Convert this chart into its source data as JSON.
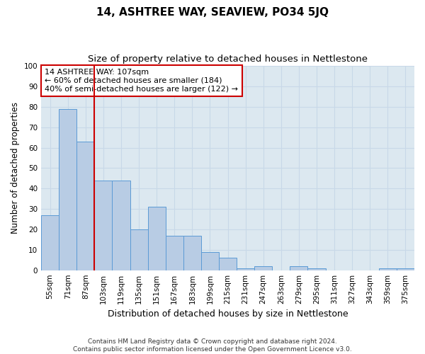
{
  "title": "14, ASHTREE WAY, SEAVIEW, PO34 5JQ",
  "subtitle": "Size of property relative to detached houses in Nettlestone",
  "xlabel": "Distribution of detached houses by size in Nettlestone",
  "ylabel": "Number of detached properties",
  "bar_values": [
    27,
    79,
    63,
    44,
    44,
    20,
    31,
    17,
    17,
    9,
    6,
    1,
    2,
    0,
    2,
    1,
    0,
    0,
    0,
    1,
    1
  ],
  "bin_labels": [
    "55sqm",
    "71sqm",
    "87sqm",
    "103sqm",
    "119sqm",
    "135sqm",
    "151sqm",
    "167sqm",
    "183sqm",
    "199sqm",
    "215sqm",
    "231sqm",
    "247sqm",
    "263sqm",
    "279sqm",
    "295sqm",
    "311sqm",
    "327sqm",
    "343sqm",
    "359sqm",
    "375sqm"
  ],
  "bar_color": "#b8cce4",
  "bar_edge_color": "#5b9bd5",
  "vline_x_index": 3,
  "vline_color": "#cc0000",
  "annotation_text": "14 ASHTREE WAY: 107sqm\n← 60% of detached houses are smaller (184)\n40% of semi-detached houses are larger (122) →",
  "annotation_box_color": "#ffffff",
  "annotation_box_edge": "#cc0000",
  "ylim": [
    0,
    100
  ],
  "yticks": [
    0,
    10,
    20,
    30,
    40,
    50,
    60,
    70,
    80,
    90,
    100
  ],
  "grid_color": "#c8d8e8",
  "bg_color": "#dce8f0",
  "footer": "Contains HM Land Registry data © Crown copyright and database right 2024.\nContains public sector information licensed under the Open Government Licence v3.0.",
  "title_fontsize": 11,
  "subtitle_fontsize": 9.5,
  "xlabel_fontsize": 9,
  "ylabel_fontsize": 8.5,
  "tick_fontsize": 7.5,
  "annotation_fontsize": 8,
  "footer_fontsize": 6.5
}
